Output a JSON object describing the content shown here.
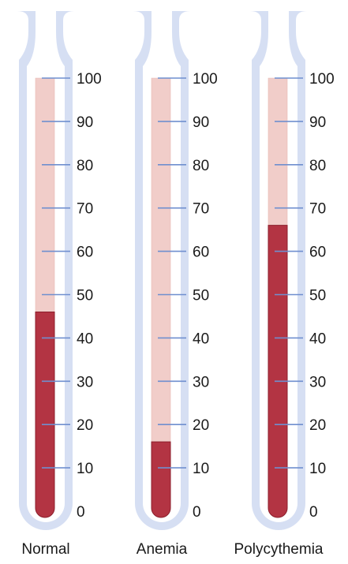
{
  "scale": {
    "ticks": [
      0,
      10,
      20,
      30,
      40,
      50,
      60,
      70,
      80,
      90,
      100
    ],
    "max": 100
  },
  "tubes": [
    {
      "label": "Normal",
      "hematocrit": 46
    },
    {
      "label": "Anemia",
      "hematocrit": 16
    },
    {
      "label": "Polycythemia",
      "hematocrit": 66
    }
  ],
  "colors": {
    "tube": "#d6dff3",
    "plasma": "#f1cdc9",
    "red_cells": "#b33443",
    "tick": "#6f8fcf"
  }
}
